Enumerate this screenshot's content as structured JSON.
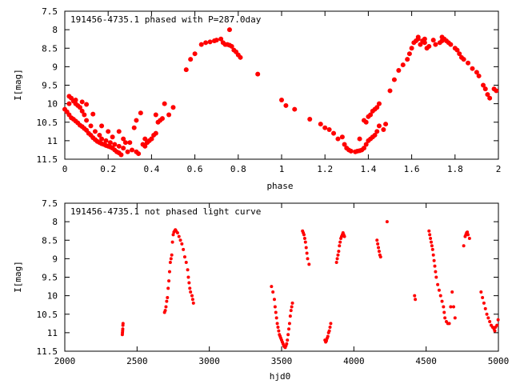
{
  "chart_data": [
    {
      "type": "scatter",
      "title": "191456-4735.1 phased with P=287.0day",
      "xlabel": "phase",
      "ylabel": "I[mag]",
      "xlim": [
        0,
        2
      ],
      "ylim": [
        7.5,
        11.5
      ],
      "y_inverted": true,
      "grid": false,
      "legend": "none",
      "marker_color": "#ff0000",
      "xticks": [
        "0",
        "0.2",
        "0.4",
        "0.6",
        "0.8",
        "1",
        "1.2",
        "1.4",
        "1.6",
        "1.8",
        "2"
      ],
      "xtick_values": [
        0,
        0.2,
        0.4,
        0.6,
        0.8,
        1,
        1.2,
        1.4,
        1.6,
        1.8,
        2
      ],
      "yticks": [
        "7.5",
        "8",
        "8.5",
        "9",
        "9.5",
        "10",
        "10.5",
        "11",
        "11.5"
      ],
      "ytick_values": [
        7.5,
        8,
        8.5,
        9,
        9.5,
        10,
        10.5,
        11,
        11.5
      ],
      "points": [
        [
          0.0,
          10.15
        ],
        [
          0.01,
          10.22
        ],
        [
          0.02,
          10.3
        ],
        [
          0.03,
          10.38
        ],
        [
          0.04,
          10.42
        ],
        [
          0.05,
          10.47
        ],
        [
          0.06,
          10.52
        ],
        [
          0.07,
          10.58
        ],
        [
          0.08,
          10.62
        ],
        [
          0.09,
          10.67
        ],
        [
          0.1,
          10.72
        ],
        [
          0.11,
          10.8
        ],
        [
          0.12,
          10.85
        ],
        [
          0.13,
          10.92
        ],
        [
          0.14,
          10.97
        ],
        [
          0.15,
          11.02
        ],
        [
          0.16,
          11.05
        ],
        [
          0.17,
          11.08
        ],
        [
          0.18,
          11.1
        ],
        [
          0.19,
          11.13
        ],
        [
          0.2,
          11.15
        ],
        [
          0.21,
          11.17
        ],
        [
          0.22,
          11.2
        ],
        [
          0.23,
          11.25
        ],
        [
          0.24,
          11.3
        ],
        [
          0.25,
          11.33
        ],
        [
          0.26,
          11.38
        ],
        [
          0.02,
          9.8
        ],
        [
          0.03,
          9.85
        ],
        [
          0.04,
          9.93
        ],
        [
          0.05,
          10.0
        ],
        [
          0.06,
          10.05
        ],
        [
          0.07,
          10.1
        ],
        [
          0.08,
          10.2
        ],
        [
          0.09,
          10.3
        ],
        [
          0.1,
          10.45
        ],
        [
          0.12,
          10.6
        ],
        [
          0.14,
          10.75
        ],
        [
          0.16,
          10.85
        ],
        [
          0.17,
          10.95
        ],
        [
          0.19,
          11.0
        ],
        [
          0.21,
          11.05
        ],
        [
          0.23,
          11.1
        ],
        [
          0.25,
          11.15
        ],
        [
          0.27,
          11.2
        ],
        [
          0.29,
          11.3
        ],
        [
          0.31,
          11.25
        ],
        [
          0.02,
          10.0
        ],
        [
          0.05,
          9.9
        ],
        [
          0.08,
          9.95
        ],
        [
          0.1,
          10.02
        ],
        [
          0.13,
          10.28
        ],
        [
          0.17,
          10.6
        ],
        [
          0.2,
          10.75
        ],
        [
          0.22,
          10.9
        ],
        [
          0.25,
          10.75
        ],
        [
          0.27,
          10.95
        ],
        [
          0.28,
          11.05
        ],
        [
          0.3,
          11.05
        ],
        [
          0.32,
          10.65
        ],
        [
          0.33,
          10.45
        ],
        [
          0.35,
          10.25
        ],
        [
          0.37,
          10.95
        ],
        [
          0.38,
          11.05
        ],
        [
          0.39,
          11.0
        ],
        [
          0.4,
          10.95
        ],
        [
          0.41,
          10.85
        ],
        [
          0.42,
          10.8
        ],
        [
          0.43,
          10.5
        ],
        [
          0.44,
          10.45
        ],
        [
          0.45,
          10.4
        ],
        [
          0.46,
          10.0
        ],
        [
          0.48,
          10.3
        ],
        [
          0.5,
          10.1
        ],
        [
          0.33,
          11.3
        ],
        [
          0.34,
          11.35
        ],
        [
          0.36,
          11.1
        ],
        [
          0.37,
          11.15
        ],
        [
          0.38,
          11.05
        ],
        [
          0.4,
          10.95
        ],
        [
          0.42,
          10.3
        ],
        [
          0.56,
          9.08
        ],
        [
          0.58,
          8.8
        ],
        [
          0.6,
          8.65
        ],
        [
          0.63,
          8.4
        ],
        [
          0.65,
          8.35
        ],
        [
          0.67,
          8.33
        ],
        [
          0.69,
          8.3
        ],
        [
          0.7,
          8.28
        ],
        [
          0.72,
          8.25
        ],
        [
          0.73,
          8.35
        ],
        [
          0.74,
          8.4
        ],
        [
          0.75,
          8.4
        ],
        [
          0.76,
          8.42
        ],
        [
          0.77,
          8.45
        ],
        [
          0.78,
          8.55
        ],
        [
          0.79,
          8.6
        ],
        [
          0.8,
          8.68
        ],
        [
          0.81,
          8.75
        ],
        [
          0.76,
          8.0
        ],
        [
          0.89,
          9.2
        ],
        [
          1.0,
          9.9
        ],
        [
          1.02,
          10.05
        ],
        [
          1.06,
          10.15
        ],
        [
          1.13,
          10.42
        ],
        [
          1.18,
          10.55
        ],
        [
          1.2,
          10.65
        ],
        [
          1.22,
          10.7
        ],
        [
          1.24,
          10.8
        ],
        [
          1.26,
          10.95
        ],
        [
          1.28,
          10.9
        ],
        [
          1.29,
          11.1
        ],
        [
          1.3,
          11.2
        ],
        [
          1.31,
          11.25
        ],
        [
          1.32,
          11.28
        ],
        [
          1.34,
          11.3
        ],
        [
          1.35,
          11.28
        ],
        [
          1.36,
          11.27
        ],
        [
          1.37,
          11.25
        ],
        [
          1.38,
          11.2
        ],
        [
          1.39,
          11.1
        ],
        [
          1.4,
          11.0
        ],
        [
          1.41,
          10.95
        ],
        [
          1.42,
          10.9
        ],
        [
          1.43,
          10.85
        ],
        [
          1.44,
          10.75
        ],
        [
          1.45,
          10.6
        ],
        [
          1.36,
          10.95
        ],
        [
          1.38,
          10.45
        ],
        [
          1.39,
          10.5
        ],
        [
          1.4,
          10.35
        ],
        [
          1.41,
          10.3
        ],
        [
          1.42,
          10.2
        ],
        [
          1.43,
          10.15
        ],
        [
          1.44,
          10.1
        ],
        [
          1.45,
          10.0
        ],
        [
          1.47,
          10.7
        ],
        [
          1.48,
          10.55
        ],
        [
          1.5,
          9.65
        ],
        [
          1.52,
          9.35
        ],
        [
          1.54,
          9.1
        ],
        [
          1.56,
          8.95
        ],
        [
          1.58,
          8.8
        ],
        [
          1.59,
          8.65
        ],
        [
          1.6,
          8.5
        ],
        [
          1.61,
          8.35
        ],
        [
          1.62,
          8.3
        ],
        [
          1.63,
          8.25
        ],
        [
          1.64,
          8.4
        ],
        [
          1.65,
          8.3
        ],
        [
          1.66,
          8.25
        ],
        [
          1.67,
          8.5
        ],
        [
          1.68,
          8.45
        ],
        [
          1.71,
          8.4
        ],
        [
          1.73,
          8.35
        ],
        [
          1.74,
          8.3
        ],
        [
          1.75,
          8.25
        ],
        [
          1.76,
          8.3
        ],
        [
          1.77,
          8.35
        ],
        [
          1.78,
          8.4
        ],
        [
          1.8,
          8.5
        ],
        [
          1.81,
          8.55
        ],
        [
          1.82,
          8.65
        ],
        [
          1.83,
          8.75
        ],
        [
          1.84,
          8.8
        ],
        [
          1.86,
          8.9
        ],
        [
          1.88,
          9.05
        ],
        [
          1.9,
          9.15
        ],
        [
          1.91,
          9.25
        ],
        [
          1.93,
          9.5
        ],
        [
          1.94,
          9.6
        ],
        [
          1.95,
          9.75
        ],
        [
          1.96,
          9.85
        ],
        [
          1.98,
          9.6
        ],
        [
          1.99,
          9.65
        ],
        [
          1.63,
          8.2
        ],
        [
          1.66,
          8.35
        ],
        [
          1.7,
          8.28
        ],
        [
          1.74,
          8.2
        ]
      ]
    },
    {
      "type": "scatter",
      "title": "191456-4735.1 not phased light curve",
      "xlabel": "hjd0",
      "ylabel": "I[mag]",
      "xlim": [
        2000,
        5000
      ],
      "ylim": [
        7.5,
        11.5
      ],
      "y_inverted": true,
      "grid": false,
      "legend": "none",
      "marker_color": "#ff0000",
      "xticks": [
        "2000",
        "2500",
        "3000",
        "3500",
        "4000",
        "4500",
        "5000"
      ],
      "xtick_values": [
        2000,
        2500,
        3000,
        3500,
        4000,
        4500,
        5000
      ],
      "yticks": [
        "7.5",
        "8",
        "8.5",
        "9",
        "9.5",
        "10",
        "10.5",
        "11",
        "11.5"
      ],
      "ytick_values": [
        7.5,
        8,
        8.5,
        9,
        9.5,
        10,
        10.5,
        11,
        11.5
      ],
      "points": [
        [
          2398,
          11.05
        ],
        [
          2399,
          11.0
        ],
        [
          2400,
          10.95
        ],
        [
          2401,
          10.9
        ],
        [
          2402,
          10.8
        ],
        [
          2403,
          10.75
        ],
        [
          2690,
          10.45
        ],
        [
          2695,
          10.4
        ],
        [
          2700,
          10.3
        ],
        [
          2705,
          10.15
        ],
        [
          2710,
          10.05
        ],
        [
          2715,
          9.8
        ],
        [
          2720,
          9.6
        ],
        [
          2725,
          9.35
        ],
        [
          2730,
          9.1
        ],
        [
          2735,
          9.0
        ],
        [
          2740,
          8.9
        ],
        [
          2745,
          8.55
        ],
        [
          2750,
          8.35
        ],
        [
          2755,
          8.28
        ],
        [
          2760,
          8.25
        ],
        [
          2765,
          8.22
        ],
        [
          2770,
          8.25
        ],
        [
          2780,
          8.3
        ],
        [
          2790,
          8.4
        ],
        [
          2800,
          8.5
        ],
        [
          2810,
          8.6
        ],
        [
          2820,
          8.75
        ],
        [
          2830,
          8.95
        ],
        [
          2840,
          9.1
        ],
        [
          2850,
          9.3
        ],
        [
          2855,
          9.5
        ],
        [
          2860,
          9.65
        ],
        [
          2865,
          9.8
        ],
        [
          2870,
          9.9
        ],
        [
          2880,
          10.0
        ],
        [
          2885,
          10.1
        ],
        [
          2890,
          10.2
        ],
        [
          3430,
          9.75
        ],
        [
          3440,
          9.9
        ],
        [
          3450,
          10.1
        ],
        [
          3455,
          10.3
        ],
        [
          3460,
          10.45
        ],
        [
          3465,
          10.6
        ],
        [
          3470,
          10.75
        ],
        [
          3475,
          10.85
        ],
        [
          3480,
          10.95
        ],
        [
          3485,
          11.05
        ],
        [
          3490,
          11.1
        ],
        [
          3495,
          11.15
        ],
        [
          3500,
          11.2
        ],
        [
          3505,
          11.25
        ],
        [
          3510,
          11.3
        ],
        [
          3515,
          11.35
        ],
        [
          3520,
          11.38
        ],
        [
          3525,
          11.4
        ],
        [
          3530,
          11.35
        ],
        [
          3535,
          11.3
        ],
        [
          3540,
          11.2
        ],
        [
          3545,
          11.05
        ],
        [
          3550,
          10.9
        ],
        [
          3555,
          10.75
        ],
        [
          3560,
          10.55
        ],
        [
          3565,
          10.4
        ],
        [
          3570,
          10.3
        ],
        [
          3575,
          10.2
        ],
        [
          3645,
          8.25
        ],
        [
          3650,
          8.3
        ],
        [
          3655,
          8.35
        ],
        [
          3660,
          8.45
        ],
        [
          3665,
          8.55
        ],
        [
          3670,
          8.7
        ],
        [
          3675,
          8.85
        ],
        [
          3680,
          9.0
        ],
        [
          3690,
          9.15
        ],
        [
          3800,
          11.2
        ],
        [
          3805,
          11.25
        ],
        [
          3810,
          11.22
        ],
        [
          3815,
          11.15
        ],
        [
          3820,
          11.1
        ],
        [
          3825,
          11.0
        ],
        [
          3830,
          10.95
        ],
        [
          3835,
          10.85
        ],
        [
          3840,
          10.75
        ],
        [
          3880,
          9.1
        ],
        [
          3885,
          9.0
        ],
        [
          3890,
          8.9
        ],
        [
          3895,
          8.8
        ],
        [
          3900,
          8.65
        ],
        [
          3905,
          8.55
        ],
        [
          3910,
          8.45
        ],
        [
          3915,
          8.4
        ],
        [
          3920,
          8.35
        ],
        [
          3925,
          8.3
        ],
        [
          3930,
          8.35
        ],
        [
          3935,
          8.4
        ],
        [
          4160,
          8.5
        ],
        [
          4165,
          8.6
        ],
        [
          4170,
          8.7
        ],
        [
          4175,
          8.8
        ],
        [
          4180,
          8.9
        ],
        [
          4185,
          8.95
        ],
        [
          4230,
          8.0
        ],
        [
          4420,
          10.0
        ],
        [
          4425,
          10.1
        ],
        [
          4520,
          8.25
        ],
        [
          4525,
          8.35
        ],
        [
          4530,
          8.45
        ],
        [
          4535,
          8.55
        ],
        [
          4540,
          8.65
        ],
        [
          4545,
          8.75
        ],
        [
          4550,
          8.9
        ],
        [
          4555,
          9.05
        ],
        [
          4560,
          9.2
        ],
        [
          4565,
          9.35
        ],
        [
          4570,
          9.5
        ],
        [
          4580,
          9.7
        ],
        [
          4590,
          9.85
        ],
        [
          4600,
          10.0
        ],
        [
          4610,
          10.15
        ],
        [
          4620,
          10.3
        ],
        [
          4625,
          10.45
        ],
        [
          4630,
          10.6
        ],
        [
          4640,
          10.7
        ],
        [
          4650,
          10.75
        ],
        [
          4660,
          10.75
        ],
        [
          4670,
          10.3
        ],
        [
          4680,
          9.9
        ],
        [
          4690,
          10.3
        ],
        [
          4700,
          10.6
        ],
        [
          4760,
          8.65
        ],
        [
          4770,
          8.4
        ],
        [
          4775,
          8.35
        ],
        [
          4780,
          8.3
        ],
        [
          4785,
          8.28
        ],
        [
          4790,
          8.35
        ],
        [
          4800,
          8.45
        ],
        [
          4880,
          9.9
        ],
        [
          4890,
          10.05
        ],
        [
          4900,
          10.2
        ],
        [
          4910,
          10.35
        ],
        [
          4920,
          10.5
        ],
        [
          4930,
          10.6
        ],
        [
          4940,
          10.7
        ],
        [
          4950,
          10.8
        ],
        [
          4960,
          10.85
        ],
        [
          4970,
          10.9
        ],
        [
          4975,
          10.95
        ],
        [
          4980,
          10.85
        ],
        [
          4990,
          10.8
        ],
        [
          4998,
          10.65
        ]
      ]
    }
  ]
}
